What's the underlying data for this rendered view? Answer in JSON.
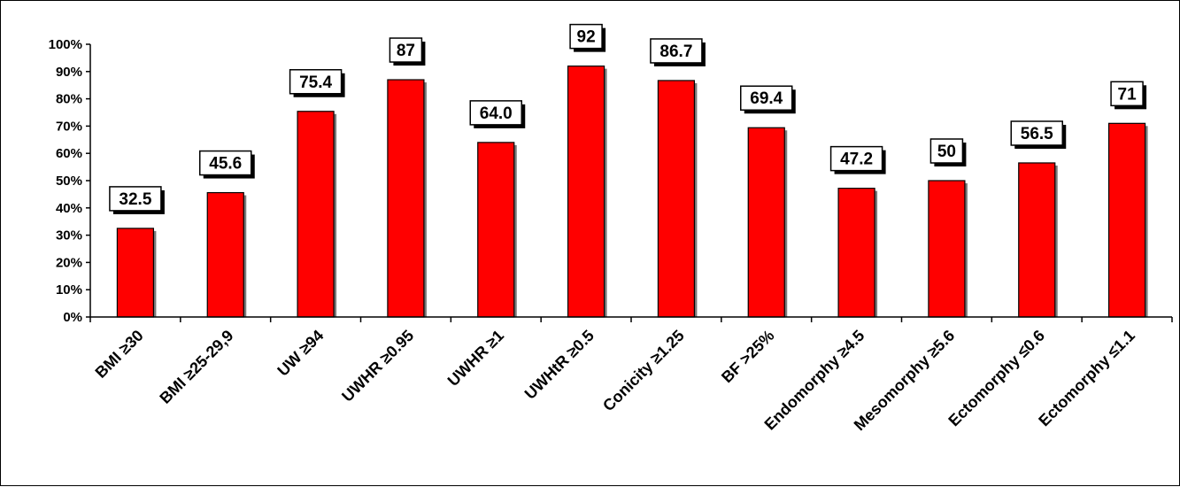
{
  "chart_data": {
    "type": "bar",
    "title": "",
    "xlabel": "",
    "ylabel": "",
    "ylim": [
      0,
      100
    ],
    "ytick_labels": [
      "0%",
      "10%",
      "20%",
      "30%",
      "40%",
      "50%",
      "60%",
      "70%",
      "80%",
      "90%",
      "100%"
    ],
    "grid": false,
    "legend": "none",
    "bar_color": "#ff0000",
    "categories": [
      "BMI ≥30",
      "BMI ≥25-29,9",
      "UW ≥94",
      "UWHR ≥0.95",
      "UWHR ≥1",
      "UWHtR ≥0.5",
      "Conicity ≥1.25",
      "BF >25%",
      "Endomorphy ≥4.5",
      "Mesomorphy ≥5.6",
      "Ectomorphy ≤0.6",
      "Ectomorphy ≤1.1"
    ],
    "values": [
      32.5,
      45.6,
      75.4,
      87,
      64.0,
      92,
      86.7,
      69.4,
      47.2,
      50,
      56.5,
      71
    ],
    "data_labels": [
      "32.5",
      "45.6",
      "75.4",
      "87",
      "64.0",
      "92",
      "86.7",
      "69.4",
      "47.2",
      "50",
      "56.5",
      "71"
    ]
  }
}
